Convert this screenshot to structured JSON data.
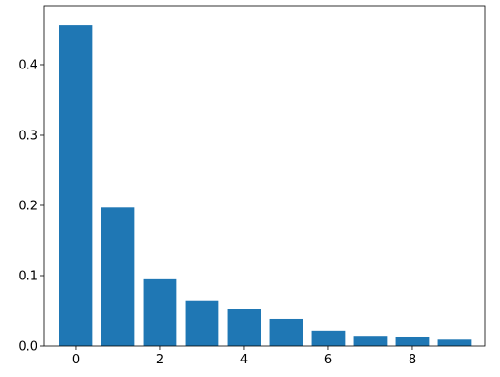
{
  "chart_data": {
    "type": "bar",
    "x": [
      0,
      1,
      2,
      3,
      4,
      5,
      6,
      7,
      8,
      9
    ],
    "values": [
      0.457,
      0.197,
      0.095,
      0.064,
      0.053,
      0.039,
      0.021,
      0.014,
      0.013,
      0.01
    ],
    "color": "#1f77b4",
    "xlim": [
      -0.76,
      9.74
    ],
    "xticks": [
      0,
      2,
      4,
      6,
      8
    ],
    "ylim": [
      0,
      0.4831
    ],
    "yticks": [
      {
        "value": 0,
        "label": "0.0"
      },
      0.1,
      0.2,
      0.3,
      0.4
    ]
  }
}
